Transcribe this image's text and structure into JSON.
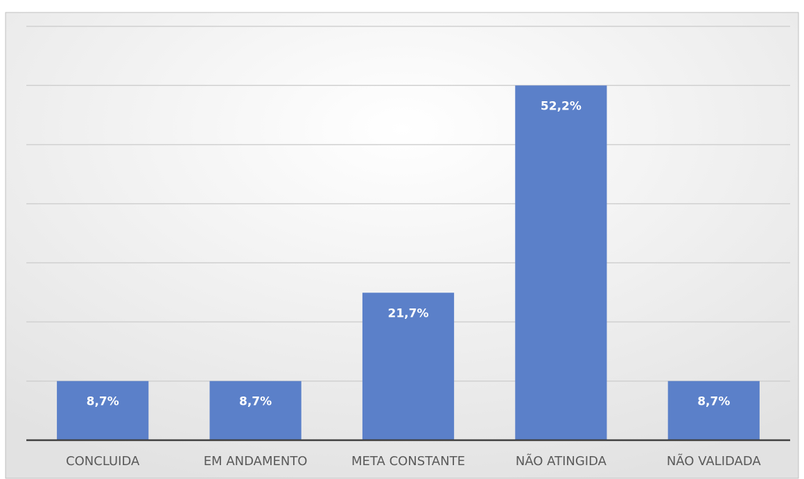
{
  "chart_data": {
    "type": "bar",
    "categories": [
      "CONCLUIDA",
      "EM ANDAMENTO",
      "META CONSTANTE",
      "NÃO ATINGIDA",
      "NÃO VALIDADA"
    ],
    "values": [
      8.7,
      8.7,
      21.7,
      52.2,
      8.7
    ],
    "value_labels": [
      "8,7%",
      "8,7%",
      "21,7%",
      "52,2%",
      "8,7%"
    ],
    "color": "#5b80c9",
    "ylim": [
      0,
      60.9
    ],
    "yticks": [
      0,
      8.7,
      17.4,
      26.1,
      34.8,
      43.5,
      52.2,
      60.9
    ],
    "grid": true
  }
}
